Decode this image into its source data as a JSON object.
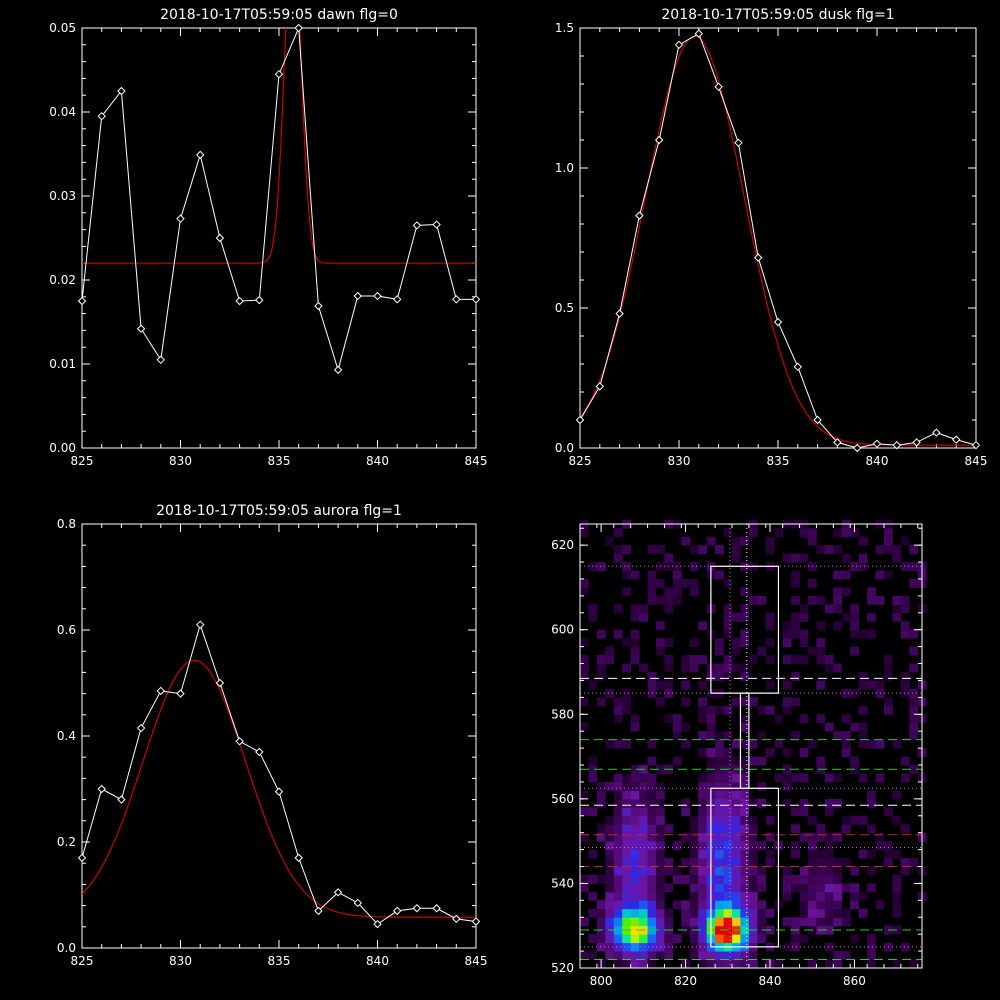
{
  "colors": {
    "background": "#000000",
    "axes": "#ffffff",
    "data": "#ffffff",
    "fit": "#cc0000",
    "dashed_white": "#ffffff",
    "dashed_green": "#22cc22",
    "dashed_red": "#cc2222",
    "dotted": "#cc66cc"
  },
  "chart_data": [
    {
      "type": "line",
      "title": "2018-10-17T05:59:05 dawn flg=0",
      "xlim": [
        825,
        845
      ],
      "ylim": [
        0,
        0.05
      ],
      "xticks": [
        "825",
        "830",
        "835",
        "840",
        "845"
      ],
      "yticks": [
        "0.00",
        "0.01",
        "0.02",
        "0.03",
        "0.04",
        "0.05"
      ],
      "series": [
        {
          "role": "data",
          "x": [
            825,
            826,
            827,
            828,
            829,
            830,
            831,
            832,
            833,
            834,
            835,
            836,
            837,
            838,
            839,
            840,
            841,
            842,
            843,
            844,
            845
          ],
          "y": [
            0.0175,
            0.0395,
            0.0425,
            0.0142,
            0.0105,
            0.0273,
            0.0349,
            0.025,
            0.0175,
            0.0176,
            0.0445,
            0.05,
            0.0169,
            0.0093,
            0.0181,
            0.0181,
            0.0177,
            0.0265,
            0.0266,
            0.0177,
            0.0177
          ]
        },
        {
          "role": "fit",
          "model": "gaussian+offset",
          "amplitude": 0.04,
          "center": 835.7,
          "sigma": 0.42,
          "offset": 0.022
        }
      ]
    },
    {
      "type": "line",
      "title": "2018-10-17T05:59:05 dusk flg=1",
      "xlim": [
        825,
        845
      ],
      "ylim": [
        0,
        1.5
      ],
      "xticks": [
        "825",
        "830",
        "835",
        "840",
        "845"
      ],
      "yticks": [
        "0.0",
        "0.5",
        "1.0",
        "1.5"
      ],
      "series": [
        {
          "role": "data",
          "x": [
            825,
            826,
            827,
            828,
            829,
            830,
            831,
            832,
            833,
            834,
            835,
            836,
            837,
            838,
            839,
            840,
            841,
            842,
            843,
            844,
            845
          ],
          "y": [
            0.1,
            0.22,
            0.48,
            0.83,
            1.1,
            1.44,
            1.48,
            1.29,
            1.09,
            0.68,
            0.45,
            0.29,
            0.1,
            0.02,
            0.0,
            0.015,
            0.01,
            0.02,
            0.055,
            0.03,
            0.01
          ]
        },
        {
          "role": "fit",
          "model": "gaussian+offset",
          "amplitude": 1.46,
          "center": 830.8,
          "sigma": 2.5,
          "offset": 0.01
        }
      ]
    },
    {
      "type": "line",
      "title": "2018-10-17T05:59:05 aurora flg=1",
      "xlim": [
        825,
        845
      ],
      "ylim": [
        0,
        0.8
      ],
      "xticks": [
        "825",
        "830",
        "835",
        "840",
        "845"
      ],
      "yticks": [
        "0.0",
        "0.2",
        "0.4",
        "0.6",
        "0.8"
      ],
      "series": [
        {
          "role": "data",
          "x": [
            825,
            826,
            827,
            828,
            829,
            830,
            831,
            832,
            833,
            834,
            835,
            836,
            837,
            838,
            839,
            840,
            841,
            842,
            843,
            844,
            845
          ],
          "y": [
            0.17,
            0.3,
            0.28,
            0.415,
            0.485,
            0.48,
            0.61,
            0.5,
            0.39,
            0.37,
            0.295,
            0.17,
            0.07,
            0.105,
            0.085,
            0.045,
            0.07,
            0.075,
            0.075,
            0.055,
            0.05
          ]
        },
        {
          "role": "fit",
          "model": "gaussian+offset",
          "amplitude": 0.485,
          "center": 830.7,
          "sigma": 2.6,
          "offset": 0.058
        }
      ]
    },
    {
      "type": "heatmap",
      "title": "",
      "xlim": [
        795,
        876
      ],
      "ylim": [
        520,
        625
      ],
      "xticks": [
        "800",
        "820",
        "840",
        "860"
      ],
      "yticks": [
        "520",
        "540",
        "560",
        "580",
        "600",
        "620"
      ],
      "hot_spots": [
        {
          "x": 808,
          "y": 529,
          "x_spread": 4,
          "y_spread": 3.5,
          "peak": 0.75
        },
        {
          "x": 808,
          "y": 545,
          "x_spread": 4,
          "y_spread": 12,
          "peak": 0.25
        },
        {
          "x": 830,
          "y": 529,
          "x_spread": 3.5,
          "y_spread": 3.5,
          "peak": 1.0
        },
        {
          "x": 829,
          "y": 545,
          "x_spread": 4,
          "y_spread": 14,
          "peak": 0.33
        },
        {
          "x": 852,
          "y": 538,
          "x_spread": 4,
          "y_spread": 8,
          "peak": 0.12
        }
      ],
      "hlines": [
        {
          "y": 588.5,
          "style": "dashed",
          "color": "white"
        },
        {
          "y": 574,
          "style": "dashed",
          "color": "green"
        },
        {
          "y": 567,
          "style": "dashed",
          "color": "green"
        },
        {
          "y": 558.5,
          "style": "dashed",
          "color": "white"
        },
        {
          "y": 551.5,
          "style": "dashed",
          "color": "red"
        },
        {
          "y": 544,
          "style": "dashed",
          "color": "red"
        },
        {
          "y": 529,
          "style": "dashed",
          "color": "green"
        },
        {
          "y": 522,
          "style": "dashed",
          "color": "green"
        },
        {
          "y": 615,
          "style": "dotted",
          "color": "magenta"
        },
        {
          "y": 585,
          "style": "dotted",
          "color": "magenta"
        },
        {
          "y": 562.5,
          "style": "dotted",
          "color": "magenta"
        },
        {
          "y": 548.5,
          "style": "dotted",
          "color": "magenta"
        },
        {
          "y": 525,
          "style": "dotted",
          "color": "magenta"
        }
      ],
      "vlines": [
        {
          "x": 830.5,
          "style": "dotted",
          "color": "magenta"
        },
        {
          "x": 834.5,
          "style": "dotted",
          "color": "white"
        }
      ],
      "boxes": [
        {
          "x0": 826,
          "x1": 842,
          "y0": 585,
          "y1": 615
        },
        {
          "x0": 833,
          "x1": 835,
          "y0": 562.5,
          "y1": 585
        },
        {
          "x0": 826,
          "x1": 842,
          "y0": 525,
          "y1": 562.5
        }
      ]
    }
  ]
}
